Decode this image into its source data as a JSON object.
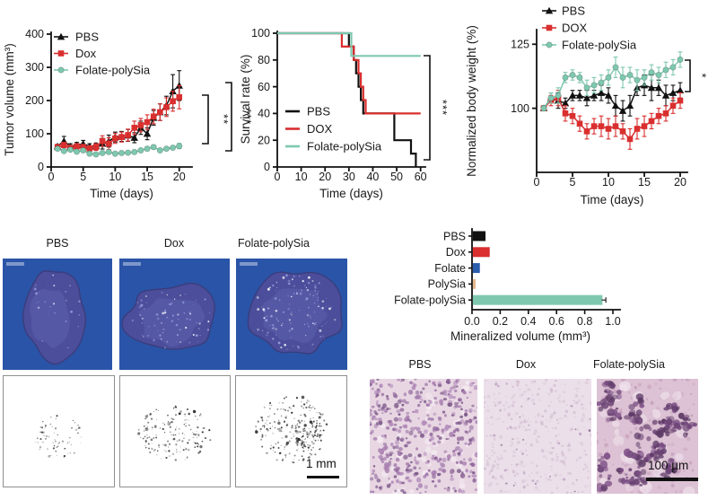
{
  "chart_data": [
    {
      "id": "tumor-volume",
      "type": "line",
      "xlabel": "Time (days)",
      "ylabel": "Tumor volume (mm³)",
      "xlim": [
        0,
        22
      ],
      "ylim": [
        0,
        400
      ],
      "xticks": [
        0,
        5,
        10,
        15,
        20
      ],
      "yticks": [
        0,
        100,
        200,
        300,
        400
      ],
      "xtick_labels": [
        "0",
        "5",
        "10",
        "15",
        "20"
      ],
      "ytick_labels": [
        "0",
        "100",
        "200",
        "300",
        "400"
      ],
      "x": [
        1,
        2,
        3,
        4,
        5,
        6,
        7,
        8,
        9,
        10,
        11,
        12,
        13,
        14,
        15,
        16,
        17,
        18,
        19,
        20
      ],
      "series": [
        {
          "name": "PBS",
          "color": "#111111",
          "marker": "triangle",
          "values": [
            62,
            78,
            62,
            66,
            70,
            62,
            64,
            70,
            78,
            90,
            92,
            95,
            88,
            118,
            100,
            148,
            165,
            185,
            228,
            245
          ],
          "errors": [
            6,
            14,
            8,
            8,
            10,
            8,
            8,
            16,
            18,
            15,
            15,
            18,
            15,
            20,
            18,
            22,
            25,
            28,
            50,
            45
          ]
        },
        {
          "name": "Dox",
          "color": "#d92f2f",
          "marker": "square",
          "values": [
            60,
            66,
            58,
            62,
            60,
            56,
            60,
            78,
            70,
            86,
            90,
            96,
            118,
            126,
            135,
            152,
            165,
            180,
            198,
            210
          ],
          "errors": [
            6,
            8,
            6,
            8,
            8,
            8,
            10,
            16,
            18,
            15,
            15,
            18,
            20,
            20,
            22,
            22,
            25,
            28,
            30,
            35
          ]
        },
        {
          "name": "Folate-polySia",
          "color": "#7ec8b0",
          "marker": "circle",
          "values": [
            55,
            48,
            52,
            46,
            50,
            40,
            38,
            42,
            45,
            40,
            42,
            43,
            45,
            50,
            55,
            60,
            50,
            55,
            58,
            63
          ],
          "errors": [
            4,
            4,
            4,
            4,
            5,
            4,
            4,
            4,
            5,
            4,
            4,
            4,
            5,
            5,
            6,
            6,
            5,
            5,
            5,
            8
          ]
        }
      ],
      "significance": [
        "**",
        "***"
      ],
      "legend_position": "top-left-inside"
    },
    {
      "id": "survival",
      "type": "step",
      "xlabel": "Time (days)",
      "ylabel": "Survival rate (%)",
      "xlim": [
        0,
        62
      ],
      "ylim": [
        0,
        100
      ],
      "xticks": [
        0,
        10,
        20,
        30,
        40,
        50,
        60
      ],
      "yticks": [
        0,
        20,
        40,
        60,
        80,
        100
      ],
      "xtick_labels": [
        "0",
        "10",
        "20",
        "30",
        "40",
        "50",
        "60"
      ],
      "ytick_labels": [
        "0",
        "20",
        "40",
        "60",
        "80",
        "100"
      ],
      "series": [
        {
          "name": "PBS",
          "color": "#111111",
          "points": [
            [
              0,
              100
            ],
            [
              30,
              100
            ],
            [
              30,
              90
            ],
            [
              32,
              90
            ],
            [
              32,
              80
            ],
            [
              33,
              80
            ],
            [
              33,
              70
            ],
            [
              34,
              70
            ],
            [
              34,
              60
            ],
            [
              35,
              60
            ],
            [
              35,
              50
            ],
            [
              36,
              50
            ],
            [
              36,
              40
            ],
            [
              49,
              40
            ],
            [
              49,
              20
            ],
            [
              56,
              20
            ],
            [
              56,
              10
            ],
            [
              58,
              10
            ],
            [
              58,
              0
            ]
          ]
        },
        {
          "name": "DOX",
          "color": "#d92f2f",
          "points": [
            [
              0,
              100
            ],
            [
              27,
              100
            ],
            [
              27,
              90
            ],
            [
              32,
              90
            ],
            [
              32,
              80
            ],
            [
              34,
              80
            ],
            [
              34,
              70
            ],
            [
              35,
              70
            ],
            [
              35,
              60
            ],
            [
              36,
              60
            ],
            [
              36,
              50
            ],
            [
              37,
              50
            ],
            [
              37,
              40
            ],
            [
              60,
              40
            ]
          ]
        },
        {
          "name": "Folate-polySia",
          "color": "#7ec8b0",
          "points": [
            [
              0,
              100
            ],
            [
              31,
              100
            ],
            [
              31,
              83
            ],
            [
              60,
              83
            ]
          ]
        }
      ],
      "significance": [
        "***"
      ],
      "legend_position": "bottom-left-inside"
    },
    {
      "id": "body-weight",
      "type": "line",
      "xlabel": "Time (days)",
      "ylabel": "Normalized body weight (%)",
      "xlim": [
        0,
        21
      ],
      "ylim": [
        75,
        130
      ],
      "xticks": [
        0,
        5,
        10,
        15,
        20
      ],
      "yticks": [
        100,
        125
      ],
      "xtick_labels": [
        "0",
        "5",
        "10",
        "15",
        "20"
      ],
      "ytick_labels": [
        "100",
        "125"
      ],
      "x": [
        1,
        2,
        3,
        4,
        5,
        6,
        7,
        8,
        9,
        10,
        11,
        12,
        13,
        14,
        15,
        16,
        17,
        18,
        19,
        20
      ],
      "series": [
        {
          "name": "PBS",
          "color": "#111111",
          "marker": "triangle",
          "values": [
            100,
            104,
            103,
            102,
            105,
            105,
            104,
            105,
            106,
            105,
            101,
            99,
            101,
            108,
            109,
            108,
            108,
            105,
            106,
            107
          ],
          "errors": [
            1,
            2,
            3,
            2,
            2,
            2,
            3,
            2,
            3,
            3,
            4,
            4,
            4,
            3,
            4,
            5,
            3,
            4,
            3,
            3
          ]
        },
        {
          "name": "DOX",
          "color": "#d92f2f",
          "marker": "square",
          "values": [
            100,
            103,
            104,
            98,
            97,
            94,
            91,
            93,
            93,
            92,
            93,
            91,
            88,
            92,
            93,
            95,
            97,
            98,
            101,
            103
          ],
          "errors": [
            1,
            2,
            3,
            3,
            3,
            3,
            3,
            3,
            4,
            4,
            4,
            3,
            4,
            4,
            4,
            3,
            3,
            3,
            3,
            3
          ]
        },
        {
          "name": "Folate-polySia",
          "color": "#7ec8b0",
          "marker": "circle",
          "values": [
            100,
            104,
            105,
            112,
            113,
            112,
            108,
            109,
            110,
            112,
            116,
            112,
            113,
            111,
            112,
            114,
            113,
            115,
            116,
            119
          ],
          "errors": [
            1,
            2,
            3,
            2,
            2,
            2,
            3,
            3,
            3,
            3,
            4,
            4,
            3,
            4,
            3,
            3,
            3,
            3,
            3,
            3
          ]
        }
      ],
      "significance": [
        "*"
      ],
      "legend_position": "top-outside"
    },
    {
      "id": "mineralized-volume",
      "type": "bar",
      "xlabel": "Mineralized volume (mm³)",
      "categories": [
        "PBS",
        "Dox",
        "Folate",
        "PolySia",
        "Folate-polySia"
      ],
      "values": [
        0.09,
        0.12,
        0.05,
        0.02,
        0.92
      ],
      "errors": [
        0,
        0,
        0,
        0,
        0.03
      ],
      "colors": [
        "#111111",
        "#d92f2f",
        "#2b5dad",
        "#e2b98e",
        "#7ec8b0"
      ],
      "xlim": [
        0,
        1.0
      ],
      "xticks": [
        0,
        0.2,
        0.4,
        0.6,
        0.8,
        1.0
      ],
      "xtick_labels": [
        "0.0",
        "0.2",
        "0.4",
        "0.6",
        "0.8",
        "1.0"
      ]
    }
  ],
  "panels": {
    "ct_labels": [
      "PBS",
      "Dox",
      "Folate-polySia"
    ],
    "hist_labels": [
      "PBS",
      "Dox",
      "Folate-polySia"
    ],
    "xray_scale_label": "1 mm",
    "hist_scale_label": "100 µm"
  },
  "colors": {
    "pbs": "#111111",
    "dox": "#d92f2f",
    "folate_polysia": "#7ec8b0",
    "folate": "#2b5dad",
    "polysia": "#e2b98e",
    "ct_background": "#2a54a7"
  }
}
